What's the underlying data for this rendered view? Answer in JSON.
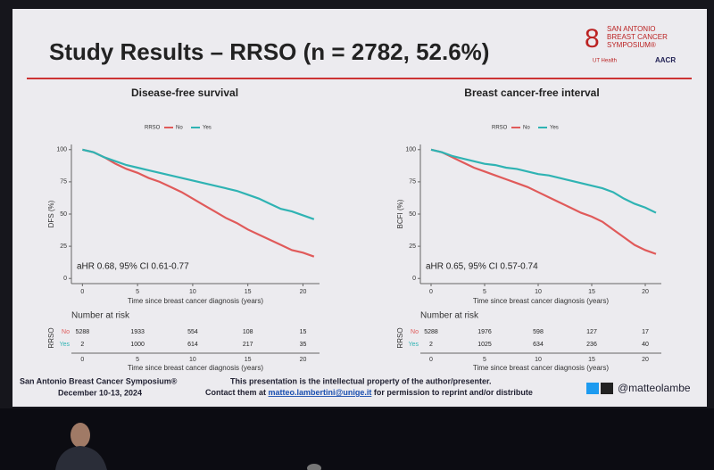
{
  "slide": {
    "title": "Study Results – RRSO (n = 2782, 52.6%)",
    "logo": [
      "SAN ANTONIO",
      "BREAST CANCER",
      "SYMPOSIUM®",
      "UT Health",
      "AACR"
    ],
    "footer_left": [
      "San Antonio Breast Cancer Symposium®",
      "December 10-13, 2024"
    ],
    "footer_center": [
      "This presentation is the intellectual property of the author/presenter.",
      "Contact them at",
      "matteo.lambertini@unige.it",
      "for permission to reprint and/or distribute"
    ],
    "handle": "@matteolambe"
  },
  "chart_data": [
    {
      "type": "line",
      "title": "Disease-free survival",
      "legend_title": "RRSO",
      "x_label": "Time since breast cancer diagnosis (years)",
      "y_label": "DFS (%)",
      "annotation": "aHR 0.68, 95% CI 0.61-0.77",
      "x": [
        0,
        1,
        2,
        3,
        4,
        5,
        6,
        7,
        8,
        9,
        10,
        11,
        12,
        13,
        14,
        15,
        16,
        17,
        18,
        19,
        20,
        21
      ],
      "series": [
        {
          "name": "No",
          "color": "#e05a5a",
          "values": [
            100,
            98,
            94,
            89,
            85,
            82,
            78,
            75,
            71,
            67,
            62,
            57,
            52,
            47,
            43,
            38,
            34,
            30,
            26,
            22,
            20,
            17
          ]
        },
        {
          "name": "Yes",
          "color": "#2fb3b3",
          "values": [
            100,
            98,
            94,
            91,
            88,
            86,
            84,
            82,
            80,
            78,
            76,
            74,
            72,
            70,
            68,
            65,
            62,
            58,
            54,
            52,
            49,
            46
          ]
        }
      ],
      "xlim": [
        -1,
        21.5
      ],
      "ylim": [
        -4,
        104
      ],
      "xticks": [
        0,
        5,
        10,
        15,
        20
      ],
      "yticks": [
        0,
        25,
        50,
        75,
        100
      ],
      "risk_table": {
        "title": "Number at risk",
        "rows": [
          [
            5288,
            1933,
            554,
            108,
            15
          ],
          [
            2,
            1000,
            614,
            217,
            35
          ]
        ]
      }
    },
    {
      "type": "line",
      "title": "Breast cancer-free interval",
      "legend_title": "RRSO",
      "x_label": "Time since breast cancer diagnosis (years)",
      "y_label": "BCFI (%)",
      "annotation": "aHR 0.65, 95% CI 0.57-0.74",
      "x": [
        0,
        1,
        2,
        3,
        4,
        5,
        6,
        7,
        8,
        9,
        10,
        11,
        12,
        13,
        14,
        15,
        16,
        17,
        18,
        19,
        20,
        21
      ],
      "series": [
        {
          "name": "No",
          "color": "#e05a5a",
          "values": [
            100,
            98,
            94,
            90,
            86,
            83,
            80,
            77,
            74,
            71,
            67,
            63,
            59,
            55,
            51,
            48,
            44,
            38,
            32,
            26,
            22,
            19
          ]
        },
        {
          "name": "Yes",
          "color": "#2fb3b3",
          "values": [
            100,
            98,
            95,
            93,
            91,
            89,
            88,
            86,
            85,
            83,
            81,
            80,
            78,
            76,
            74,
            72,
            70,
            67,
            62,
            58,
            55,
            51
          ]
        }
      ],
      "xlim": [
        -1,
        21.5
      ],
      "ylim": [
        -4,
        104
      ],
      "xticks": [
        0,
        5,
        10,
        15,
        20
      ],
      "yticks": [
        0,
        25,
        50,
        75,
        100
      ],
      "risk_table": {
        "title": "Number at risk",
        "rows": [
          [
            5288,
            1976,
            598,
            127,
            17
          ],
          [
            2,
            1025,
            634,
            236,
            40
          ]
        ]
      }
    }
  ]
}
